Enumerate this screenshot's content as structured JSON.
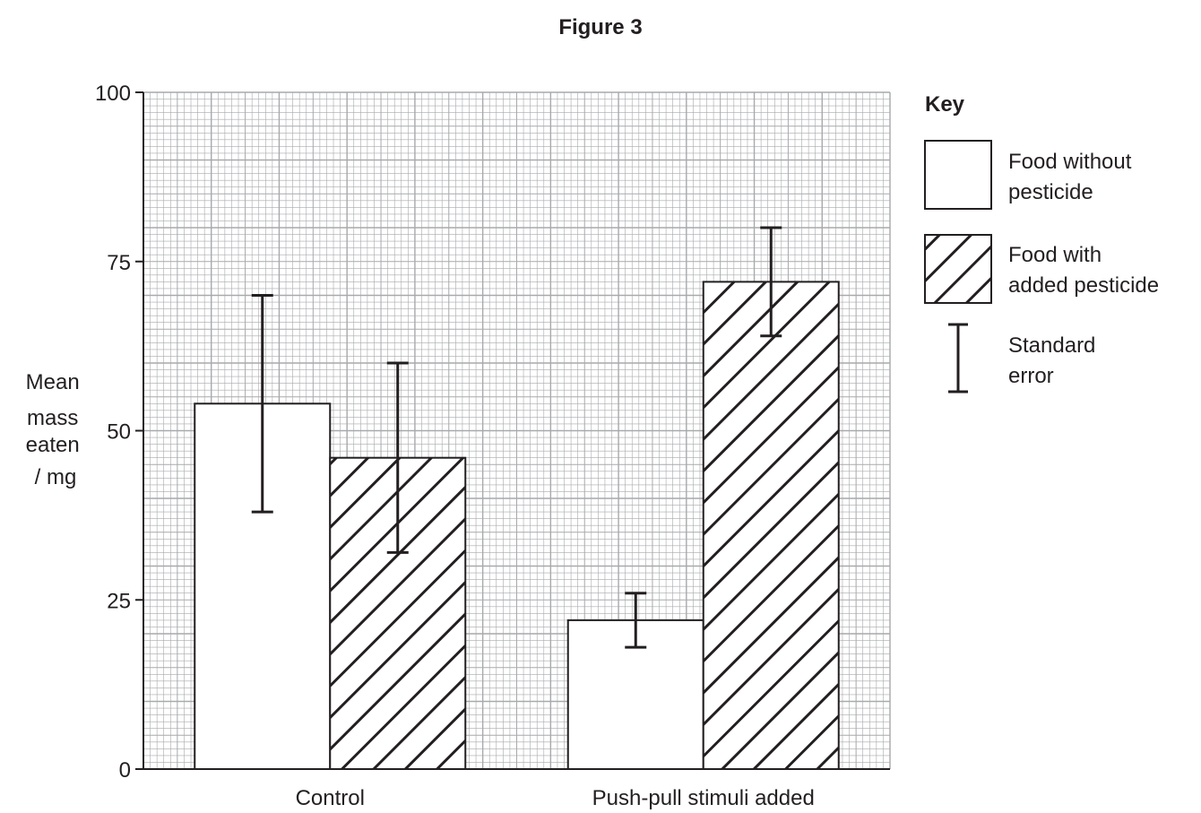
{
  "figure_title": "Figure 3",
  "chart_data": {
    "type": "bar",
    "title": "Figure 3",
    "xlabel": "",
    "ylabel_lines": [
      "Mean",
      "mass",
      "eaten",
      "/ mg"
    ],
    "ylim": [
      0,
      100
    ],
    "yticks": [
      0,
      25,
      50,
      75,
      100
    ],
    "grid": true,
    "legend_position": "right",
    "categories": [
      "Control",
      "Push-pull stimuli added"
    ],
    "series": [
      {
        "name": "Food without pesticide",
        "pattern": "plain",
        "values": [
          54,
          22
        ],
        "error_low": [
          38,
          18
        ],
        "error_high": [
          70,
          26
        ]
      },
      {
        "name": "Food with added pesticide",
        "pattern": "hatched",
        "values": [
          46,
          72
        ],
        "error_low": [
          32,
          64
        ],
        "error_high": [
          60,
          80
        ]
      }
    ]
  },
  "key": {
    "title": "Key",
    "items": [
      {
        "lines": [
          "Food without",
          "pesticide"
        ]
      },
      {
        "lines": [
          "Food with",
          "added pesticide"
        ]
      },
      {
        "lines": [
          "Standard",
          "error"
        ]
      }
    ]
  }
}
